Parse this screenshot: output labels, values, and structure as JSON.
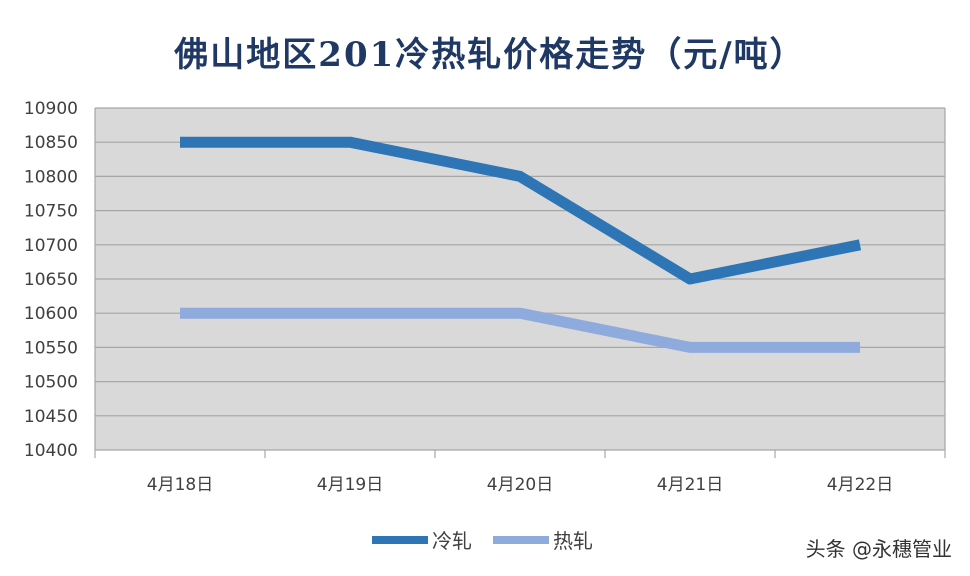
{
  "chart_data": {
    "type": "line",
    "title": "佛山地区201冷热轧价格走势（元/吨）",
    "categories": [
      "4月18日",
      "4月19日",
      "4月20日",
      "4月21日",
      "4月22日"
    ],
    "series": [
      {
        "name": "冷轧",
        "values": [
          10850,
          10850,
          10800,
          10650,
          10700
        ],
        "color": "#2e75b6"
      },
      {
        "name": "热轧",
        "values": [
          10600,
          10600,
          10600,
          10550,
          10550
        ],
        "color": "#8faadc"
      }
    ],
    "ylim": [
      10400,
      10900
    ],
    "yticks": [
      10400,
      10450,
      10500,
      10550,
      10600,
      10650,
      10700,
      10750,
      10800,
      10850,
      10900
    ],
    "grid": true,
    "legend_position": "bottom",
    "plot_background": "#d9d9d9",
    "watermark": "头条 @永穗管业"
  }
}
